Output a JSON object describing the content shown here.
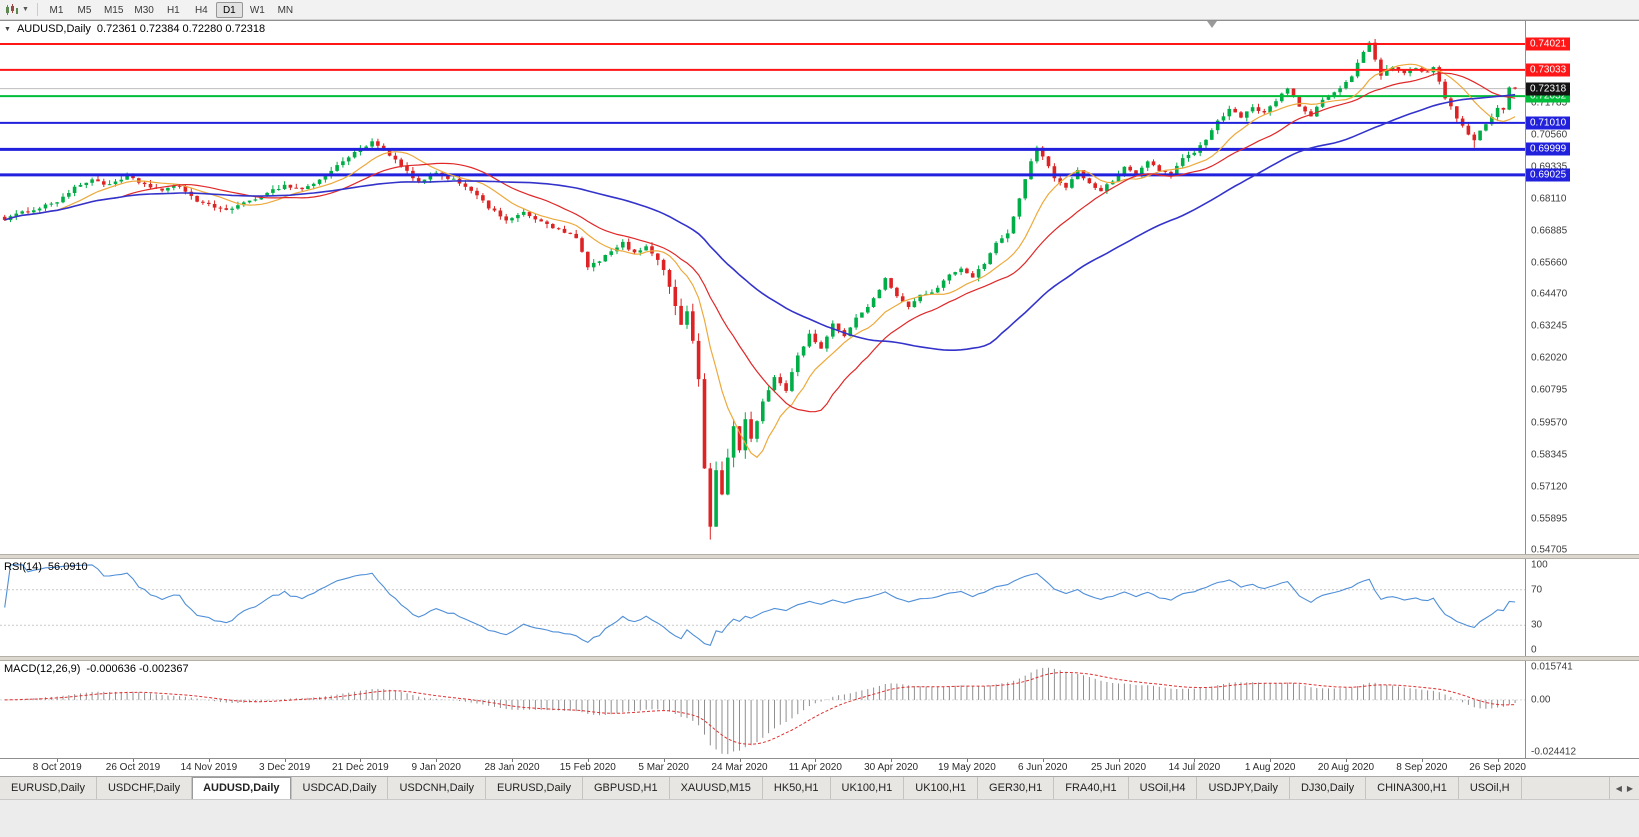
{
  "toolbar": {
    "caret_glyph": "▼",
    "timeframes": [
      {
        "label": "M1",
        "active": false
      },
      {
        "label": "M5",
        "active": false
      },
      {
        "label": "M15",
        "active": false
      },
      {
        "label": "M30",
        "active": false
      },
      {
        "label": "H1",
        "active": false
      },
      {
        "label": "H4",
        "active": false
      },
      {
        "label": "D1",
        "active": true
      },
      {
        "label": "W1",
        "active": false
      },
      {
        "label": "MN",
        "active": false
      }
    ]
  },
  "main_chart": {
    "collapse_glyph": "▼",
    "symbol": "AUDUSD,Daily",
    "ohlc_text": "0.72361 0.72384 0.72280 0.72318",
    "open": "0.72361",
    "high": "0.72384",
    "low": "0.72280",
    "close": "0.72318"
  },
  "rsi": {
    "label": "RSI(14)",
    "value": "56.0910"
  },
  "macd": {
    "label": "MACD(12,26,9)",
    "value": "-0.000636 -0.002367"
  },
  "tabs": {
    "scroll_left": "◀",
    "scroll_right": "▶",
    "items": [
      {
        "label": "EURUSD,Daily",
        "active": false
      },
      {
        "label": "USDCHF,Daily",
        "active": false
      },
      {
        "label": "AUDUSD,Daily",
        "active": true
      },
      {
        "label": "USDCAD,Daily",
        "active": false
      },
      {
        "label": "USDCNH,Daily",
        "active": false
      },
      {
        "label": "EURUSD,Daily",
        "active": false
      },
      {
        "label": "GBPUSD,H1",
        "active": false
      },
      {
        "label": "XAUUSD,M15",
        "active": false
      },
      {
        "label": "HK50,H1",
        "active": false
      },
      {
        "label": "UK100,H1",
        "active": false
      },
      {
        "label": "UK100,H1",
        "active": false
      },
      {
        "label": "GER30,H1",
        "active": false
      },
      {
        "label": "FRA40,H1",
        "active": false
      },
      {
        "label": "USOil,H4",
        "active": false
      },
      {
        "label": "USDJPY,Daily",
        "active": false
      },
      {
        "label": "DJ30,Daily",
        "active": false
      },
      {
        "label": "CHINA300,H1",
        "active": false
      },
      {
        "label": "USOil,H",
        "active": false
      }
    ]
  },
  "chart_data": [
    {
      "type": "candlestick",
      "title": "AUDUSD,Daily",
      "num_candles": 260,
      "y_range": [
        0.5455,
        0.749
      ],
      "y_ticks": [
        "0.71785",
        "0.70560",
        "0.69335",
        "0.68110",
        "0.66885",
        "0.65660",
        "0.64470",
        "0.63245",
        "0.62020",
        "0.60795",
        "0.59570",
        "0.58345",
        "0.57120",
        "0.55895",
        "0.54705"
      ],
      "x_labels": [
        "8 Oct 2019",
        "26 Oct 2019",
        "14 Nov 2019",
        "3 Dec 2019",
        "21 Dec 2019",
        "9 Jan 2020",
        "28 Jan 2020",
        "15 Feb 2020",
        "5 Mar 2020",
        "24 Mar 2020",
        "11 Apr 2020",
        "30 Apr 2020",
        "19 May 2020",
        "6 Jun 2020",
        "25 Jun 2020",
        "14 Jul 2020",
        "1 Aug 2020",
        "20 Aug 2020",
        "8 Sep 2020",
        "26 Sep 2020"
      ],
      "x_label_start_index": 9,
      "x_label_step": 13,
      "up_color": "#00ad46",
      "down_color": "#dd2323",
      "bid_line": {
        "value": 0.72318,
        "color": "#bdbdbd"
      },
      "current_price_badge": {
        "value": 0.72318,
        "label": "0.72318",
        "color": "#141414"
      },
      "hlines": [
        {
          "value": 0.74021,
          "label": "0.74021",
          "color": "#ff1616",
          "width": 2
        },
        {
          "value": 0.73033,
          "label": "0.73033",
          "color": "#ff1616",
          "width": 2
        },
        {
          "value": 0.72032,
          "label": "0.72032",
          "color": "#00bd3a",
          "width": 2
        },
        {
          "value": 0.7101,
          "label": "0.71010",
          "color": "#2121dd",
          "width": 2
        },
        {
          "value": 0.69999,
          "label": "0.69999",
          "color": "#2121dd",
          "width": 3
        },
        {
          "value": 0.69025,
          "label": "0.69025",
          "color": "#2121dd",
          "width": 3
        }
      ],
      "overlays": [
        {
          "name": "ma-fast",
          "period": 10,
          "color": "#eda93c",
          "width": 1.2
        },
        {
          "name": "ma-mid",
          "period": 21,
          "color": "#e02828",
          "width": 1.2
        },
        {
          "name": "ma-slow",
          "period": 50,
          "color": "#3333cc",
          "width": 1.6
        }
      ],
      "close_anchors": [
        [
          0,
          0.6735
        ],
        [
          3,
          0.6758
        ],
        [
          6,
          0.6778
        ],
        [
          9,
          0.6802
        ],
        [
          12,
          0.6852
        ],
        [
          15,
          0.6886
        ],
        [
          18,
          0.6862
        ],
        [
          21,
          0.6895
        ],
        [
          24,
          0.6866
        ],
        [
          27,
          0.6842
        ],
        [
          30,
          0.6862
        ],
        [
          33,
          0.6802
        ],
        [
          36,
          0.6778
        ],
        [
          39,
          0.6772
        ],
        [
          42,
          0.6802
        ],
        [
          45,
          0.6836
        ],
        [
          48,
          0.6862
        ],
        [
          51,
          0.6848
        ],
        [
          54,
          0.6882
        ],
        [
          57,
          0.6936
        ],
        [
          60,
          0.6992
        ],
        [
          63,
          0.7026
        ],
        [
          65,
          0.6996
        ],
        [
          68,
          0.6936
        ],
        [
          71,
          0.6872
        ],
        [
          74,
          0.6906
        ],
        [
          77,
          0.6886
        ],
        [
          80,
          0.6846
        ],
        [
          83,
          0.6776
        ],
        [
          86,
          0.6732
        ],
        [
          89,
          0.6756
        ],
        [
          92,
          0.6722
        ],
        [
          95,
          0.6692
        ],
        [
          98,
          0.6662
        ],
        [
          100,
          0.6548
        ],
        [
          103,
          0.6592
        ],
        [
          106,
          0.6642
        ],
        [
          108,
          0.6602
        ],
        [
          110,
          0.6632
        ],
        [
          112,
          0.6582
        ],
        [
          114,
          0.6482
        ],
        [
          115,
          0.6396
        ],
        [
          116,
          0.6332
        ],
        [
          117,
          0.6392
        ],
        [
          118,
          0.6272
        ],
        [
          119,
          0.6112
        ],
        [
          120,
          0.5782
        ],
        [
          121,
          0.5562
        ],
        [
          122,
          0.5772
        ],
        [
          123,
          0.5682
        ],
        [
          124,
          0.5822
        ],
        [
          125,
          0.5952
        ],
        [
          126,
          0.5842
        ],
        [
          127,
          0.5972
        ],
        [
          128,
          0.5892
        ],
        [
          130,
          0.6032
        ],
        [
          132,
          0.6132
        ],
        [
          134,
          0.6082
        ],
        [
          136,
          0.6212
        ],
        [
          138,
          0.6292
        ],
        [
          140,
          0.6242
        ],
        [
          142,
          0.6332
        ],
        [
          144,
          0.6282
        ],
        [
          146,
          0.6362
        ],
        [
          148,
          0.6396
        ],
        [
          151,
          0.6506
        ],
        [
          153,
          0.6442
        ],
        [
          155,
          0.6396
        ],
        [
          157,
          0.6442
        ],
        [
          160,
          0.6466
        ],
        [
          162,
          0.6526
        ],
        [
          164,
          0.6546
        ],
        [
          166,
          0.6516
        ],
        [
          168,
          0.6562
        ],
        [
          170,
          0.6642
        ],
        [
          172,
          0.6676
        ],
        [
          174,
          0.6816
        ],
        [
          176,
          0.6952
        ],
        [
          177,
          0.7002
        ],
        [
          178,
          0.6972
        ],
        [
          180,
          0.6892
        ],
        [
          182,
          0.6856
        ],
        [
          184,
          0.6922
        ],
        [
          186,
          0.6866
        ],
        [
          188,
          0.6842
        ],
        [
          190,
          0.6882
        ],
        [
          192,
          0.6932
        ],
        [
          194,
          0.6902
        ],
        [
          196,
          0.6956
        ],
        [
          198,
          0.6922
        ],
        [
          200,
          0.6902
        ],
        [
          202,
          0.6962
        ],
        [
          204,
          0.6992
        ],
        [
          206,
          0.7042
        ],
        [
          208,
          0.7106
        ],
        [
          210,
          0.7156
        ],
        [
          212,
          0.7126
        ],
        [
          214,
          0.7156
        ],
        [
          216,
          0.7146
        ],
        [
          218,
          0.7186
        ],
        [
          220,
          0.7232
        ],
        [
          222,
          0.7166
        ],
        [
          224,
          0.7122
        ],
        [
          226,
          0.7192
        ],
        [
          229,
          0.7232
        ],
        [
          231,
          0.7282
        ],
        [
          233,
          0.7372
        ],
        [
          234,
          0.7402
        ],
        [
          235,
          0.7342
        ],
        [
          236,
          0.7286
        ],
        [
          238,
          0.7316
        ],
        [
          240,
          0.7286
        ],
        [
          242,
          0.7306
        ],
        [
          244,
          0.7296
        ],
        [
          245,
          0.7312
        ],
        [
          246,
          0.7256
        ],
        [
          247,
          0.7195
        ],
        [
          248,
          0.716
        ],
        [
          249,
          0.712
        ],
        [
          250,
          0.7085
        ],
        [
          251,
          0.706
        ],
        [
          252,
          0.7035
        ],
        [
          253,
          0.7068
        ],
        [
          254,
          0.7098
        ],
        [
          255,
          0.7128
        ],
        [
          256,
          0.7162
        ],
        [
          257,
          0.7148
        ],
        [
          258,
          0.7236
        ],
        [
          259,
          0.72318
        ]
      ],
      "candle_overrides": {
        "63": {
          "high": 0.7042
        },
        "121": {
          "low": 0.551
        },
        "177": {
          "high": 0.7014
        },
        "234": {
          "high": 0.7414
        },
        "252": {
          "low": 0.7006
        },
        "258": {
          "close": 0.7236
        },
        "259": {
          "open": 0.72361,
          "high": 0.72384,
          "low": 0.7228,
          "close": 0.72318
        }
      },
      "noise": {
        "seed": 1234,
        "close_jitter": 0.0011,
        "wick": 0.0016,
        "crash_zone": [
          112,
          128
        ],
        "crash_wick": 0.004
      }
    },
    {
      "type": "line",
      "title": "RSI(14)",
      "period": 14,
      "y_range": [
        0,
        100
      ],
      "levels": [
        70,
        30
      ],
      "y_ticks": [
        "100",
        "70",
        "30",
        "0"
      ],
      "color": "#4f8fd8",
      "current_value": "56.0910",
      "derived_from": "main chart closes"
    },
    {
      "type": "macd",
      "title": "MACD(12,26,9)",
      "fast": 12,
      "slow": 26,
      "signal": 9,
      "y_range": [
        -0.024412,
        0.015741
      ],
      "y_ticks": [
        "0.015741",
        "0.00",
        "-0.024412"
      ],
      "histogram_color": "#8f8f8f",
      "signal_color": "#e03030",
      "current_values": "-0.000636 -0.002367",
      "derived_from": "main chart closes"
    }
  ]
}
